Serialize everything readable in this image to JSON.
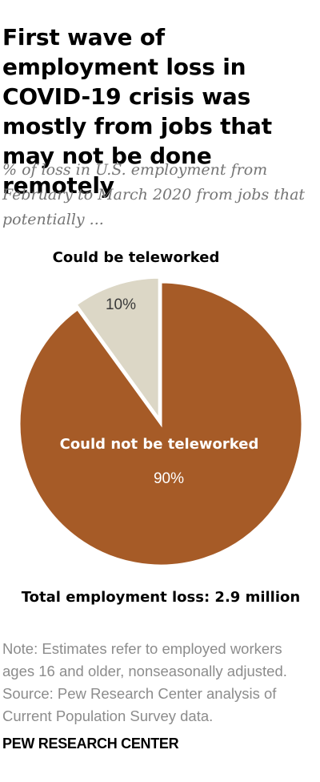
{
  "title": "First wave of employment loss in COVID-19 crisis was mostly from jobs that may not be done remotely",
  "subtitle": "% of loss in U.S. employment from February to March 2020 from jobs that potentially ...",
  "chart_data": {
    "type": "pie",
    "title": "",
    "slices": [
      {
        "label": "Could be teleworked",
        "value": 10,
        "value_label": "10%",
        "color": "#dcd7c6"
      },
      {
        "label": "Could not be teleworked",
        "value": 90,
        "value_label": "90%",
        "color": "#a65b27"
      }
    ],
    "annotation": "Total employment loss: 2.9 million"
  },
  "note": {
    "lines": [
      "Note: Estimates refer to employed workers",
      "ages 16 and older, nonseasonally adjusted.",
      "Source: Pew Research Center analysis of",
      "Current Population Survey data."
    ]
  },
  "brand": "PEW RESEARCH CENTER",
  "colors": {
    "teleworked": "#dcd7c6",
    "not_teleworked": "#a65b27",
    "note_text": "#8c8c8c",
    "subtitle_text": "#757575"
  }
}
